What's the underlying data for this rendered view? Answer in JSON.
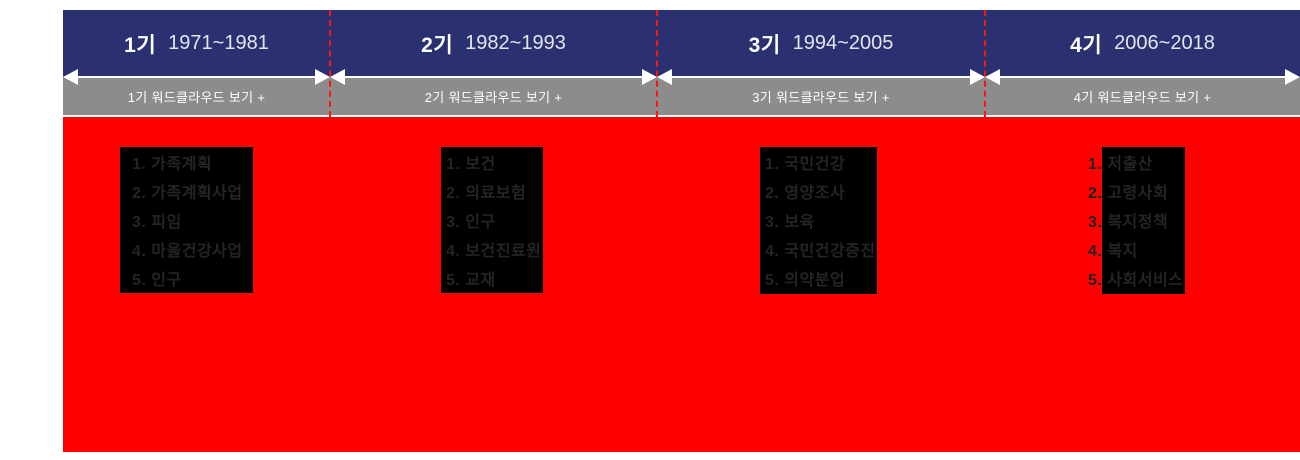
{
  "colors": {
    "navy_header": "#2b3170",
    "gray_button": "#8c8c8c",
    "red_area": "#ff0000",
    "dashed_separator": "#fb1410",
    "keyword_box": "#000000",
    "keyword_text": "#242424",
    "arrow_white": "#ffffff"
  },
  "sections": [
    {
      "period_label": "1기",
      "years": "1971~1981",
      "wordcloud_button": "1기 워드클라우드 보기 +",
      "keywords": [
        "1. 가족계획",
        "2. 가족계획사업",
        "3. 피임",
        "4. 마을건강사업",
        "5. 인구"
      ]
    },
    {
      "period_label": "2기",
      "years": "1982~1993",
      "wordcloud_button": "2기 워드클라우드 보기 +",
      "keywords": [
        "1. 보건",
        "2. 의료보험",
        "3. 인구",
        "4. 보건진료원",
        "5. 교재"
      ]
    },
    {
      "period_label": "3기",
      "years": "1994~2005",
      "wordcloud_button": "3기 워드클라우드 보기 +",
      "keywords": [
        "1. 국민건강",
        "2. 영양조사",
        "3. 보육",
        "4. 국민건강증진",
        "5. 의약분업"
      ]
    },
    {
      "period_label": "4기",
      "years": "2006~2018",
      "wordcloud_button": "4기 워드클라우드 보기 +",
      "keywords": [
        "1. 저출산",
        "2. 고령사회",
        "3. 복지정책",
        "4. 복지",
        "5. 사회서비스"
      ]
    }
  ]
}
